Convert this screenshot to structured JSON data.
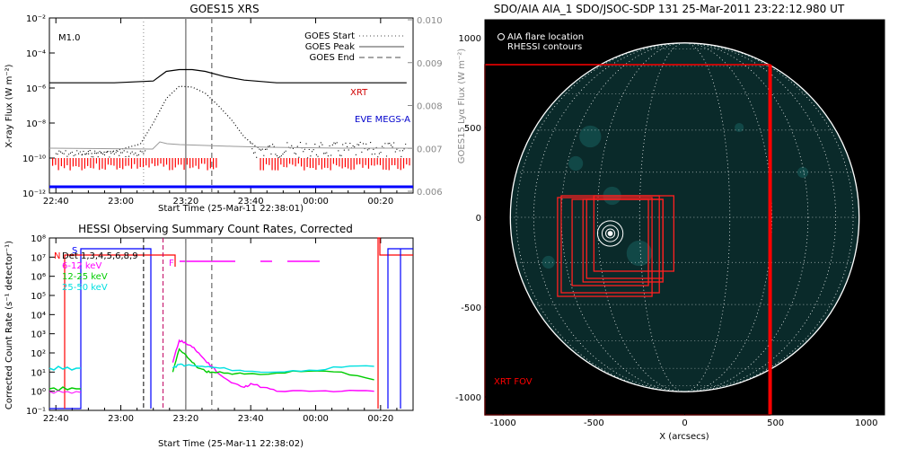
{
  "chart_data": [
    {
      "type": "line",
      "title": "GOES15 XRS",
      "xlabel": "Start Time (25-Mar-11 22:38:01)",
      "ylabel": "X-ray Flux (W m⁻²)",
      "y2label": "GOES15 Lyα Flux (W m⁻²)",
      "x_ticks": [
        "22:40",
        "23:00",
        "23:20",
        "23:40",
        "00:00",
        "00:20"
      ],
      "y_ticks": [
        "10⁻²",
        "10⁻⁴",
        "10⁻⁶",
        "10⁻⁸",
        "10⁻¹⁰",
        "10⁻¹²"
      ],
      "y2_ticks": [
        "0.010",
        "0.009",
        "0.008",
        "0.007",
        "0.006"
      ],
      "flare_class": "M1.0",
      "legend": [
        {
          "label": "GOES Start",
          "style": "dotted"
        },
        {
          "label": "GOES Peak",
          "style": "solid"
        },
        {
          "label": "GOES End",
          "style": "dashed"
        }
      ],
      "series_labels": {
        "xrt": "XRT",
        "eve": "EVE MEGS-A"
      },
      "colors": {
        "xrt": "#d00000",
        "eve": "#0000cc",
        "red": "#ff0000",
        "blue": "#0000ff",
        "lya": "#888888"
      },
      "events_min": {
        "start": 29,
        "peak": 42,
        "end": 50
      },
      "series": [
        {
          "name": "long",
          "x_min": [
            0,
            20,
            32,
            36,
            40,
            44,
            48,
            54,
            60,
            70,
            80,
            110
          ],
          "log_flux": [
            -5.7,
            -5.7,
            -5.6,
            -5.05,
            -4.95,
            -4.95,
            -5.05,
            -5.35,
            -5.55,
            -5.7,
            -5.7,
            -5.7
          ]
        },
        {
          "name": "short",
          "x_min": [
            10,
            20,
            28,
            32,
            36,
            40,
            44,
            48,
            52,
            56,
            60,
            64
          ],
          "log_flux": [
            -9.8,
            -9.6,
            -9.2,
            -8.0,
            -6.6,
            -5.9,
            -5.95,
            -6.3,
            -7.0,
            -7.8,
            -8.8,
            -9.4
          ]
        }
      ]
    },
    {
      "type": "line",
      "title": "HESSI Observing Summary Count Rates, Corrected",
      "xlabel": "Start Time (25-Mar-11 22:38:02)",
      "ylabel": "Corrected Count Rate (s⁻¹ detector⁻¹)",
      "x_ticks": [
        "22:40",
        "23:00",
        "23:20",
        "23:40",
        "00:00",
        "00:20"
      ],
      "y_ticks": [
        "10⁸",
        "10⁷",
        "10⁶",
        "10⁵",
        "10⁴",
        "10³",
        "10²",
        "10¹",
        "10⁰",
        "10⁻¹"
      ],
      "flags": {
        "s": "S",
        "n": "N",
        "f": "F"
      },
      "legend": [
        {
          "label": "Det 1,3,4,5,6,8,9",
          "color": "#000000"
        },
        {
          "label": "6-12 keV",
          "color": "#ff00ff"
        },
        {
          "label": "12-25 keV",
          "color": "#00cc00"
        },
        {
          "label": "25-50 keV",
          "color": "#00e0e0"
        }
      ],
      "series": [
        {
          "name": "6-12 keV",
          "x_min": [
            38,
            40,
            41,
            42,
            44,
            46,
            48,
            50,
            53,
            56,
            60,
            62,
            66,
            70,
            80,
            90,
            100
          ],
          "log_rate": [
            1.5,
            2.65,
            2.6,
            2.5,
            2.3,
            2.0,
            1.6,
            1.3,
            0.8,
            0.45,
            0.2,
            0.4,
            0.2,
            0.0,
            0.0,
            0.0,
            0.0
          ]
        },
        {
          "name": "12-25 keV",
          "x_min": [
            38,
            40,
            42,
            44,
            46,
            48,
            50,
            55,
            60,
            70,
            80,
            90,
            100
          ],
          "log_rate": [
            1.0,
            2.2,
            1.9,
            1.5,
            1.2,
            1.05,
            1.0,
            0.95,
            0.9,
            0.95,
            1.05,
            1.0,
            0.6
          ]
        },
        {
          "name": "25-50 keV",
          "x_min": [
            38,
            40,
            42,
            46,
            50,
            55,
            60,
            70,
            80,
            90,
            100
          ],
          "log_rate": [
            1.2,
            1.4,
            1.35,
            1.3,
            1.25,
            1.15,
            1.05,
            1.0,
            1.1,
            1.25,
            1.3
          ]
        }
      ]
    },
    {
      "type": "heatmap",
      "title": "SDO/AIA AIA_1 SDO/JSOC-SDP 131 25-Mar-2011 23:22:12.980 UT",
      "xlabel": "X (arcsecs)",
      "x_ticks": [
        "-1000",
        "-500",
        "0",
        "500",
        "1000"
      ],
      "y_ticks": [
        "1000",
        "500",
        "0",
        "-500",
        "-1000"
      ],
      "legend": [
        {
          "label": "AIA flare location"
        },
        {
          "label": "RHESSI contours"
        }
      ],
      "fov_label": "XRT FOV",
      "solar_radius_arcsec": 960,
      "flare_location_arcsec": [
        -410,
        -90
      ],
      "xrt_fov_arcsec": {
        "x": [
          -1100,
          470
        ],
        "y": [
          -1100,
          850
        ]
      },
      "colors": {
        "disk": "#0a2a2a",
        "limb": "#ffffff",
        "fov": "#ff0000"
      }
    }
  ]
}
